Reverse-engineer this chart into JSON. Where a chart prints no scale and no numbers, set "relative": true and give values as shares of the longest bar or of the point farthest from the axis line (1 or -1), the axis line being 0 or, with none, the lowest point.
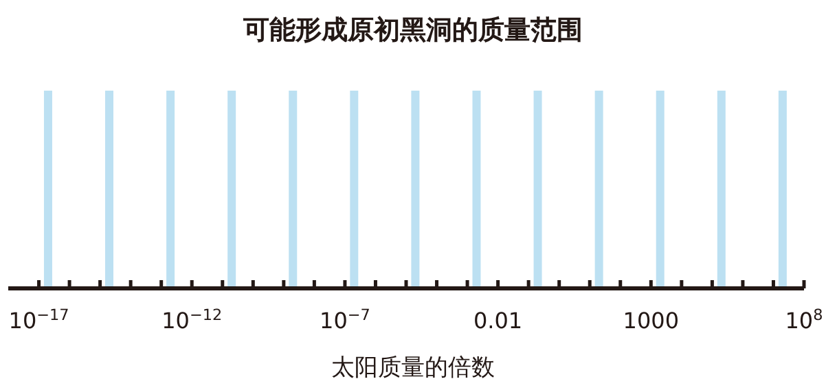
{
  "chart_data": {
    "type": "bar",
    "title": "可能形成原初黑洞的质量范围",
    "xlabel": "太阳质量的倍数",
    "x": [
      2e-17,
      2e-15,
      2e-13,
      2e-11,
      2e-09,
      2e-07,
      2e-05,
      0.002,
      0.2,
      20,
      2000,
      200000,
      20000000
    ],
    "values": [
      1,
      1,
      1,
      1,
      1,
      1,
      1,
      1,
      1,
      1,
      1,
      1,
      1
    ],
    "relative": true,
    "color": "#bce0f2",
    "log": "x",
    "grid": false,
    "xlim": [
      1e-18,
      100000000.0
    ],
    "xticks": [
      {
        "value": 1e-17,
        "label": "10$^{−17}$"
      },
      {
        "value": 1e-16,
        "label": null
      },
      {
        "value": 1e-15,
        "label": null
      },
      {
        "value": 1e-14,
        "label": null
      },
      {
        "value": 1e-13,
        "label": null
      },
      {
        "value": 1e-12,
        "label": "10$^{−12}$"
      },
      {
        "value": 1e-11,
        "label": null
      },
      {
        "value": 1e-10,
        "label": null
      },
      {
        "value": 1e-09,
        "label": null
      },
      {
        "value": 1e-08,
        "label": null
      },
      {
        "value": 1e-07,
        "label": "10$^{−7}$"
      },
      {
        "value": 1e-06,
        "label": null
      },
      {
        "value": 1e-05,
        "label": null
      },
      {
        "value": 0.0001,
        "label": null
      },
      {
        "value": 0.001,
        "label": null
      },
      0.01,
      {
        "value": 0.1,
        "label": null
      },
      {
        "value": 1,
        "label": null
      },
      {
        "value": 10,
        "label": null
      },
      {
        "value": 100,
        "label": null
      },
      1000,
      {
        "value": 10000.0,
        "label": null
      },
      {
        "value": 100000.0,
        "label": null
      },
      {
        "value": 1000000.0,
        "label": null
      },
      {
        "value": 10000000.0,
        "label": null
      },
      {
        "value": 100000000.0,
        "label": "10$^{8}$"
      }
    ]
  }
}
